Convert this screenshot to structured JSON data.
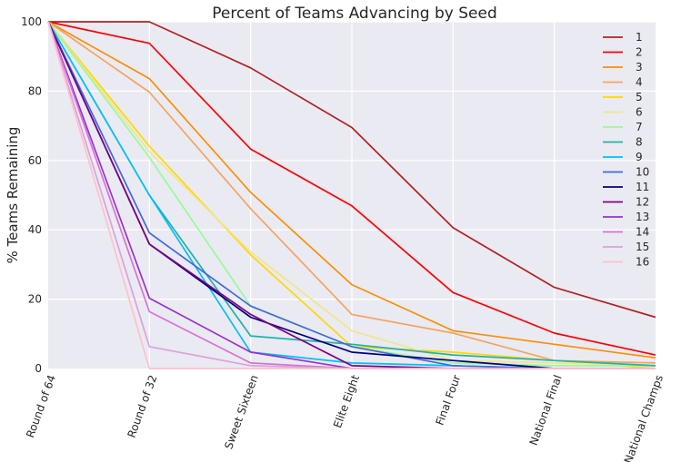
{
  "chart_data": {
    "type": "line",
    "title": "Percent of Teams Advancing by Seed",
    "xlabel": "",
    "ylabel": "% Teams Remaining",
    "ylim": [
      0,
      100
    ],
    "yticks": [
      0,
      20,
      40,
      60,
      80,
      100
    ],
    "categories": [
      "Round of 64",
      "Round of 32",
      "Sweet Sixteen",
      "Elite Eight",
      "Final Four",
      "National Final",
      "National Champs"
    ],
    "grid": true,
    "legend_position": "top-right",
    "series": [
      {
        "name": "1",
        "color": "#b22222",
        "values": [
          100,
          100,
          86.7,
          69.5,
          40.6,
          23.4,
          14.8
        ]
      },
      {
        "name": "2",
        "color": "#ff0000",
        "values": [
          100,
          93.8,
          63.3,
          46.9,
          21.9,
          10.2,
          3.9
        ]
      },
      {
        "name": "3",
        "color": "#ff8c00",
        "values": [
          100,
          83.6,
          50.8,
          24.2,
          10.9,
          7.0,
          3.1
        ]
      },
      {
        "name": "4",
        "color": "#f4a460",
        "values": [
          100,
          79.7,
          46.1,
          15.6,
          10.2,
          2.3,
          1.6
        ]
      },
      {
        "name": "5",
        "color": "#ffd700",
        "values": [
          100,
          64.1,
          32.8,
          6.3,
          4.7,
          2.3,
          0
        ]
      },
      {
        "name": "6",
        "color": "#f0e68c",
        "values": [
          100,
          62.5,
          33.6,
          10.9,
          2.3,
          1.6,
          0.8
        ]
      },
      {
        "name": "7",
        "color": "#98fb98",
        "values": [
          100,
          60.9,
          18.0,
          6.3,
          1.6,
          0.8,
          0.8
        ]
      },
      {
        "name": "8",
        "color": "#20b2aa",
        "values": [
          100,
          50.0,
          9.4,
          7.0,
          3.9,
          2.3,
          0.8
        ]
      },
      {
        "name": "9",
        "color": "#00bfff",
        "values": [
          100,
          50.0,
          4.7,
          1.6,
          0.8,
          0,
          0
        ]
      },
      {
        "name": "10",
        "color": "#4169e1",
        "values": [
          100,
          39.1,
          18.0,
          6.3,
          0.8,
          0,
          0
        ]
      },
      {
        "name": "11",
        "color": "#000080",
        "values": [
          100,
          35.9,
          14.8,
          4.7,
          2.3,
          0,
          0
        ]
      },
      {
        "name": "12",
        "color": "#800080",
        "values": [
          100,
          35.9,
          15.6,
          0.8,
          0,
          0,
          0
        ]
      },
      {
        "name": "13",
        "color": "#9932cc",
        "values": [
          100,
          20.3,
          4.7,
          0,
          0,
          0,
          0
        ]
      },
      {
        "name": "14",
        "color": "#da70d6",
        "values": [
          100,
          16.4,
          1.6,
          0,
          0,
          0,
          0
        ]
      },
      {
        "name": "15",
        "color": "#dda0dd",
        "values": [
          100,
          6.3,
          0.8,
          0,
          0,
          0,
          0
        ]
      },
      {
        "name": "16",
        "color": "#ffc0cb",
        "values": [
          100,
          0,
          0,
          0,
          0,
          0,
          0
        ]
      }
    ]
  }
}
